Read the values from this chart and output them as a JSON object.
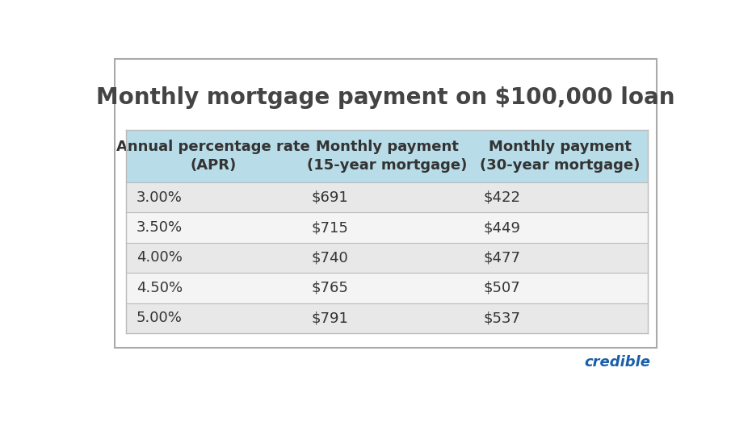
{
  "title": "Monthly mortgage payment on $100,000 loan",
  "title_fontsize": 20,
  "title_color": "#444444",
  "col_headers": [
    "Annual percentage rate\n(APR)",
    "Monthly payment\n(15-year mortgage)",
    "Monthly payment\n(30-year mortgage)"
  ],
  "rows": [
    [
      "3.00%",
      "$691",
      "$422"
    ],
    [
      "3.50%",
      "$715",
      "$449"
    ],
    [
      "4.00%",
      "$740",
      "$477"
    ],
    [
      "4.50%",
      "$765",
      "$507"
    ],
    [
      "5.00%",
      "$791",
      "$537"
    ]
  ],
  "header_bg": "#b8dce8",
  "row_bg_odd": "#e8e8e8",
  "row_bg_even": "#f4f4f4",
  "cell_text_color": "#333333",
  "header_text_color": "#333333",
  "outer_bg": "#ffffff",
  "border_color": "#bbbbbb",
  "credible_text": "credible",
  "credible_color": "#1a5faa",
  "header_fontsize": 13,
  "cell_fontsize": 13
}
